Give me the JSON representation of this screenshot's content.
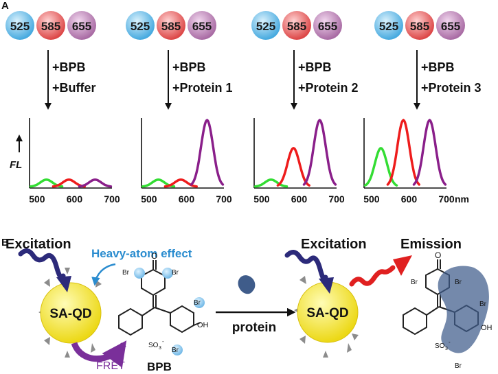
{
  "panel_a": {
    "label": "A",
    "ball_labels": [
      "525",
      "585",
      "655"
    ],
    "ball_colors": [
      "#7ec8ee",
      "#ee6f6f",
      "#c58bbf"
    ],
    "step_one": "+BPB",
    "conditions": [
      "+Buffer",
      "+Protein 1",
      "+Protein 2",
      "+Protein 3"
    ],
    "y_label": "FL",
    "x_ticks": [
      "500",
      "600",
      "700"
    ],
    "x_unit": "nm",
    "peak_colors": {
      "p525": "#33dd33",
      "p585": "#ee1c1c",
      "p655": "#8a1f8a"
    },
    "peak_heights": [
      [
        0.1,
        0.1,
        0.1
      ],
      [
        0.1,
        0.1,
        0.95
      ],
      [
        0.1,
        0.55,
        0.95
      ],
      [
        0.55,
        0.95,
        0.95
      ]
    ]
  },
  "panel_b": {
    "label": "B",
    "excitation_left": "Excitation",
    "heavy_atom": "Heavy-atom effect",
    "qd_label": "SA-QD",
    "fret": "FRET",
    "bpb": "BPB",
    "protein": "protein",
    "excitation_right": "Excitation",
    "emission": "Emission",
    "atoms": {
      "br": "Br",
      "oxygen": "O",
      "hydroxyl": "OH",
      "sulfonate": "SO",
      "sub3": "3",
      "minus": "-"
    },
    "colors": {
      "qd": "#f3e63a",
      "wave": "#2c2a7a",
      "emission": "#e02020",
      "heavy": "#2a8ccf",
      "fret": "#7a2f9a",
      "protein": "#3f5c8a"
    }
  }
}
